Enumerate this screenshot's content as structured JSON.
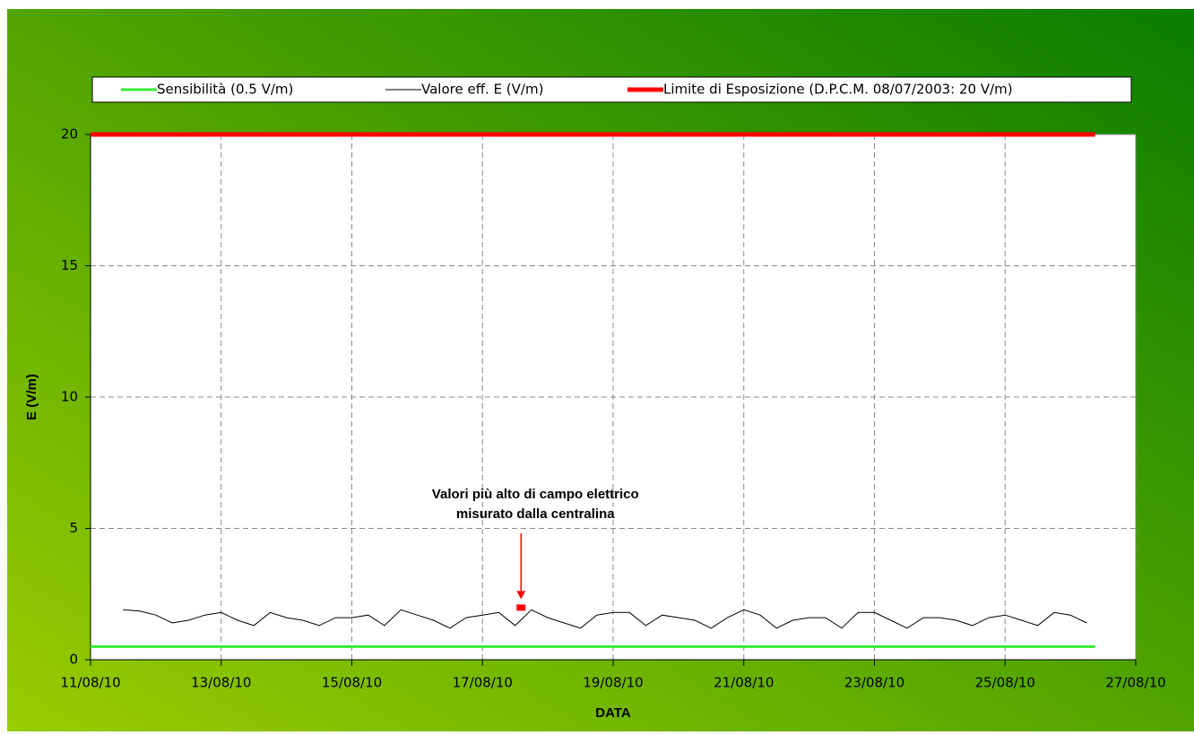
{
  "chart_data": {
    "type": "line",
    "xlabel": "DATA",
    "ylabel": "E (V/m)",
    "xlim": [
      0,
      16
    ],
    "xticks": [
      {
        "value": 0,
        "label": "11/08/10"
      },
      {
        "value": 2,
        "label": "13/08/10"
      },
      {
        "value": 4,
        "label": "15/08/10"
      },
      {
        "value": 6,
        "label": "17/08/10"
      },
      {
        "value": 8,
        "label": "19/08/10"
      },
      {
        "value": 10,
        "label": "21/08/10"
      },
      {
        "value": 12,
        "label": "23/08/10"
      },
      {
        "value": 14,
        "label": "25/08/10"
      },
      {
        "value": 16,
        "label": "27/08/10"
      }
    ],
    "ylim": [
      0,
      20
    ],
    "yticks": [
      0,
      5,
      10,
      15,
      20
    ],
    "grid": true,
    "series": [
      {
        "name": "Sensibilità (0.5 V/m)",
        "color": "#33ee33",
        "width": 3,
        "x": [
          0,
          15.38
        ],
        "values": [
          0.5,
          0.5
        ]
      },
      {
        "name": "Valore eff. E (V/m)",
        "color": "#000000",
        "width": 1,
        "x": [
          0.5,
          0.75,
          1,
          1.25,
          1.5,
          1.75,
          2,
          2.25,
          2.5,
          2.75,
          3,
          3.25,
          3.5,
          3.75,
          4,
          4.25,
          4.5,
          4.75,
          5,
          5.25,
          5.5,
          5.75,
          6,
          6.25,
          6.5,
          6.75,
          7,
          7.25,
          7.5,
          7.75,
          8,
          8.25,
          8.5,
          8.75,
          9,
          9.25,
          9.5,
          9.75,
          10,
          10.25,
          10.5,
          10.75,
          11,
          11.25,
          11.5,
          11.75,
          12,
          12.25,
          12.5,
          12.75,
          13,
          13.25,
          13.5,
          13.75,
          14,
          14.25,
          14.5,
          14.75,
          15,
          15.25
        ],
        "values": [
          1.9,
          1.85,
          1.7,
          1.4,
          1.5,
          1.7,
          1.8,
          1.5,
          1.3,
          1.8,
          1.6,
          1.5,
          1.3,
          1.6,
          1.6,
          1.7,
          1.3,
          1.9,
          1.7,
          1.5,
          1.2,
          1.6,
          1.7,
          1.8,
          1.3,
          1.9,
          1.6,
          1.4,
          1.2,
          1.7,
          1.8,
          1.8,
          1.3,
          1.7,
          1.6,
          1.5,
          1.2,
          1.6,
          1.9,
          1.7,
          1.2,
          1.5,
          1.6,
          1.6,
          1.2,
          1.8,
          1.8,
          1.5,
          1.2,
          1.6,
          1.6,
          1.5,
          1.3,
          1.6,
          1.7,
          1.5,
          1.3,
          1.8,
          1.7,
          1.4
        ]
      },
      {
        "name": "Limite di Esposizione (D.P.C.M. 08/07/2003: 20 V/m)",
        "color": "#ff0000",
        "width": 5,
        "x": [
          0,
          15.38
        ],
        "values": [
          20,
          20
        ]
      }
    ],
    "annotation": {
      "text": [
        "Valori più alto di campo elettrico",
        "misurato dalla centralina"
      ],
      "x": 6.59,
      "y": 2.0,
      "color": "#ff0000"
    }
  }
}
